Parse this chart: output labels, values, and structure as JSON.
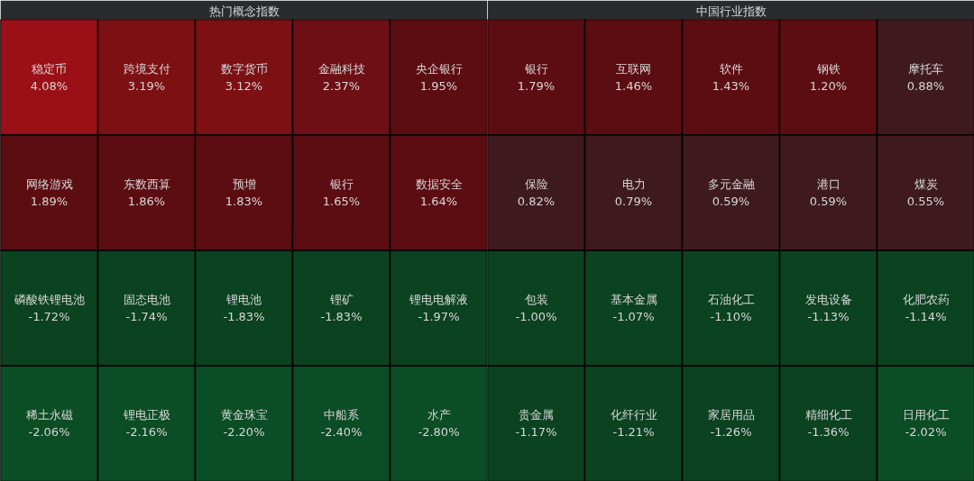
{
  "chart_data": [
    {
      "type": "other",
      "title": "热门概念指数",
      "categories": [
        "稳定币",
        "跨境支付",
        "数字货币",
        "金融科技",
        "央企银行",
        "网络游戏",
        "东数西算",
        "预增",
        "银行",
        "数据安全",
        "磷酸铁锂电池",
        "固态电池",
        "锂电池",
        "锂矿",
        "锂电电解液",
        "稀土永磁",
        "锂电正极",
        "黄金珠宝",
        "中船系",
        "水产"
      ],
      "values": [
        4.08,
        3.19,
        3.12,
        2.37,
        1.95,
        1.89,
        1.86,
        1.83,
        1.65,
        1.64,
        -1.72,
        -1.74,
        -1.83,
        -1.83,
        -1.97,
        -2.06,
        -2.16,
        -2.2,
        -2.4,
        -2.8
      ],
      "value_labels": [
        "4.08%",
        "3.19%",
        "3.12%",
        "2.37%",
        "1.95%",
        "1.89%",
        "1.86%",
        "1.83%",
        "1.65%",
        "1.64%",
        "-1.72%",
        "-1.74%",
        "-1.83%",
        "-1.83%",
        "-1.97%",
        "-2.06%",
        "-2.16%",
        "-2.20%",
        "-2.40%",
        "-2.80%"
      ]
    },
    {
      "type": "other",
      "title": "中国行业指数",
      "categories": [
        "银行",
        "互联网",
        "软件",
        "钢铁",
        "摩托车",
        "保险",
        "电力",
        "多元金融",
        "港口",
        "煤炭",
        "包装",
        "基本金属",
        "石油化工",
        "发电设备",
        "化肥农药",
        "贵金属",
        "化纤行业",
        "家居用品",
        "精细化工",
        "日用化工"
      ],
      "values": [
        1.79,
        1.46,
        1.43,
        1.2,
        0.88,
        0.82,
        0.79,
        0.59,
        0.59,
        0.55,
        -1.0,
        -1.07,
        -1.1,
        -1.13,
        -1.14,
        -1.17,
        -1.21,
        -1.26,
        -1.36,
        -2.02
      ],
      "value_labels": [
        "1.79%",
        "1.46%",
        "1.43%",
        "1.20%",
        "0.88%",
        "0.82%",
        "0.79%",
        "0.59%",
        "0.59%",
        "0.55%",
        "-1.00%",
        "-1.07%",
        "-1.10%",
        "-1.13%",
        "-1.14%",
        "-1.17%",
        "-1.21%",
        "-1.26%",
        "-1.36%",
        "-2.02%"
      ]
    }
  ]
}
